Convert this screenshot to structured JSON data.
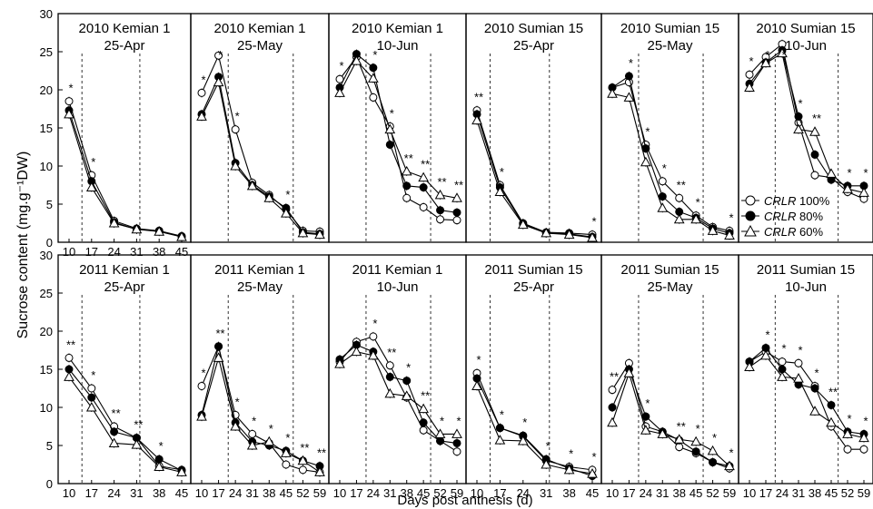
{
  "figure": {
    "ylabel": "Sucrose content (mg.g⁻¹DW)",
    "xlabel": "Days post anthesis (d)",
    "legend": [
      "CRLR 100%",
      "CRLR 80%",
      "CRLR 60%"
    ],
    "legend_prefix": "CRLR",
    "legend_suffixes": [
      "100%",
      "80%",
      "60%"
    ]
  },
  "chart_data": [
    {
      "type": "line",
      "year": "2010",
      "cultivar": "Kemian 1",
      "date": "25-Apr",
      "row": 0,
      "col": 0,
      "x": [
        10,
        17,
        24,
        31,
        38,
        45
      ],
      "xticks": [
        10,
        17,
        24,
        31,
        38,
        45
      ],
      "ylim": [
        0,
        30
      ],
      "yticks": [
        0,
        5,
        10,
        15,
        20,
        25,
        30
      ],
      "vlines": [
        14,
        32
      ],
      "series": [
        {
          "name": "CRLR 100%",
          "values": [
            18.5,
            8.8,
            2.8,
            1.8,
            1.5,
            0.8
          ]
        },
        {
          "name": "CRLR 80%",
          "values": [
            17.3,
            8.0,
            2.6,
            1.7,
            1.5,
            0.7
          ]
        },
        {
          "name": "CRLR 60%",
          "values": [
            16.8,
            7.2,
            2.5,
            1.7,
            1.4,
            0.7
          ]
        }
      ],
      "stars": [
        {
          "x": 10,
          "text": "*"
        },
        {
          "x": 17,
          "text": "*"
        }
      ]
    },
    {
      "type": "line",
      "year": "2010",
      "cultivar": "Kemian 1",
      "date": "25-May",
      "row": 0,
      "col": 1,
      "x": [
        10,
        17,
        24,
        31,
        38,
        45,
        52,
        59
      ],
      "xticks": [],
      "ylim": [
        0,
        30
      ],
      "yticks": [],
      "vlines": [
        21,
        48
      ],
      "series": [
        {
          "name": "CRLR 100%",
          "values": [
            19.6,
            24.5,
            14.8,
            7.8,
            6.2,
            4.3,
            1.5,
            1.4
          ]
        },
        {
          "name": "CRLR 80%",
          "values": [
            16.8,
            21.7,
            10.4,
            7.5,
            6.0,
            4.5,
            1.3,
            1.1
          ]
        },
        {
          "name": "CRLR 60%",
          "values": [
            16.5,
            21.0,
            10.0,
            7.4,
            5.8,
            3.8,
            1.2,
            1.0
          ]
        }
      ],
      "stars": [
        {
          "x": 10,
          "text": "*"
        },
        {
          "x": 17,
          "text": "*"
        },
        {
          "x": 24,
          "text": "*"
        },
        {
          "x": 45,
          "text": "*"
        }
      ]
    },
    {
      "type": "line",
      "year": "2010",
      "cultivar": "Kemian 1",
      "date": "10-Jun",
      "row": 0,
      "col": 2,
      "x": [
        10,
        17,
        24,
        31,
        38,
        45,
        52,
        59
      ],
      "xticks": [],
      "ylim": [
        0,
        30
      ],
      "yticks": [],
      "vlines": [
        21,
        48
      ],
      "series": [
        {
          "name": "CRLR 100%",
          "values": [
            21.4,
            24.3,
            19.0,
            15.2,
            5.8,
            4.6,
            3.0,
            2.9
          ]
        },
        {
          "name": "CRLR 80%",
          "values": [
            20.3,
            24.7,
            22.9,
            12.8,
            7.4,
            7.2,
            4.2,
            3.9
          ]
        },
        {
          "name": "CRLR 60%",
          "values": [
            19.6,
            23.8,
            21.5,
            14.8,
            9.3,
            8.5,
            6.2,
            5.8
          ]
        }
      ],
      "stars": [
        {
          "x": 10,
          "text": "*"
        },
        {
          "x": 17,
          "text": "*"
        },
        {
          "x": 24,
          "text": "*"
        },
        {
          "x": 31,
          "text": "*"
        },
        {
          "x": 38,
          "text": "**"
        },
        {
          "x": 45,
          "text": "**"
        },
        {
          "x": 52,
          "text": "**"
        },
        {
          "x": 59,
          "text": "**"
        }
      ]
    },
    {
      "type": "line",
      "year": "2010",
      "cultivar": "Sumian 15",
      "date": "25-Apr",
      "row": 0,
      "col": 3,
      "x": [
        10,
        17,
        24,
        31,
        38,
        45
      ],
      "xticks": [],
      "ylim": [
        0,
        30
      ],
      "yticks": [],
      "vlines": [
        14,
        32
      ],
      "series": [
        {
          "name": "CRLR 100%",
          "values": [
            17.3,
            7.5,
            2.5,
            1.3,
            1.2,
            1.0
          ]
        },
        {
          "name": "CRLR 80%",
          "values": [
            16.8,
            7.2,
            2.4,
            1.2,
            1.1,
            0.7
          ]
        },
        {
          "name": "CRLR 60%",
          "values": [
            16.0,
            6.6,
            2.3,
            1.2,
            1.0,
            0.6
          ]
        }
      ],
      "stars": [
        {
          "x": 10,
          "text": "**"
        },
        {
          "x": 17,
          "text": "*"
        },
        {
          "x": 45,
          "text": "*"
        }
      ]
    },
    {
      "type": "line",
      "year": "2010",
      "cultivar": "Sumian 15",
      "date": "25-May",
      "row": 0,
      "col": 4,
      "x": [
        10,
        17,
        24,
        31,
        38,
        45,
        52,
        59
      ],
      "xticks": [],
      "ylim": [
        0,
        30
      ],
      "yticks": [],
      "vlines": [
        21,
        48
      ],
      "series": [
        {
          "name": "CRLR 100%",
          "values": [
            20.3,
            21.0,
            12.8,
            8.0,
            5.8,
            3.5,
            2.0,
            1.5
          ]
        },
        {
          "name": "CRLR 80%",
          "values": [
            20.3,
            21.8,
            12.3,
            6.0,
            4.0,
            3.2,
            1.8,
            1.2
          ]
        },
        {
          "name": "CRLR 60%",
          "values": [
            19.5,
            19.0,
            10.5,
            4.5,
            3.0,
            3.0,
            1.5,
            0.9
          ]
        }
      ],
      "stars": [
        {
          "x": 17,
          "text": "*"
        },
        {
          "x": 24,
          "text": "*"
        },
        {
          "x": 31,
          "text": "*"
        },
        {
          "x": 38,
          "text": "**"
        },
        {
          "x": 45,
          "text": "*"
        },
        {
          "x": 59,
          "text": "*"
        }
      ]
    },
    {
      "type": "line",
      "year": "2010",
      "cultivar": "Sumian 15",
      "date": "10-Jun",
      "row": 0,
      "col": 5,
      "x": [
        10,
        17,
        24,
        31,
        38,
        45,
        52,
        59
      ],
      "xticks": [],
      "ylim": [
        0,
        30
      ],
      "yticks": [],
      "vlines": [
        21,
        48
      ],
      "series": [
        {
          "name": "CRLR 100%",
          "values": [
            22.0,
            24.3,
            26.0,
            15.7,
            8.8,
            8.5,
            6.6,
            5.7
          ]
        },
        {
          "name": "CRLR 80%",
          "values": [
            20.8,
            23.6,
            25.2,
            16.5,
            11.5,
            8.2,
            7.4,
            7.4
          ]
        },
        {
          "name": "CRLR 60%",
          "values": [
            20.3,
            23.5,
            24.8,
            14.8,
            14.5,
            9.0,
            7.0,
            6.5
          ]
        }
      ],
      "stars": [
        {
          "x": 10,
          "text": "*"
        },
        {
          "x": 17,
          "text": "*"
        },
        {
          "x": 24,
          "text": "*"
        },
        {
          "x": 31,
          "text": "*"
        },
        {
          "x": 38,
          "text": "**"
        },
        {
          "x": 52,
          "text": "*"
        },
        {
          "x": 59,
          "text": "*"
        }
      ]
    },
    {
      "type": "line",
      "year": "2011",
      "cultivar": "Kemian 1",
      "date": "25-Apr",
      "row": 1,
      "col": 0,
      "x": [
        10,
        17,
        24,
        31,
        38,
        45
      ],
      "xticks": [
        10,
        17,
        24,
        31,
        38,
        45
      ],
      "ylim": [
        0,
        30
      ],
      "yticks": [
        0,
        5,
        10,
        15,
        20,
        25,
        30
      ],
      "vlines": [
        14,
        32
      ],
      "series": [
        {
          "name": "CRLR 100%",
          "values": [
            16.5,
            12.5,
            7.5,
            6.0,
            2.3,
            1.8
          ]
        },
        {
          "name": "CRLR 80%",
          "values": [
            15.0,
            11.3,
            6.8,
            6.0,
            3.2,
            1.7
          ]
        },
        {
          "name": "CRLR 60%",
          "values": [
            14.0,
            10.0,
            5.3,
            5.1,
            2.2,
            1.5
          ]
        }
      ],
      "stars": [
        {
          "x": 10,
          "text": "**"
        },
        {
          "x": 17,
          "text": "*"
        },
        {
          "x": 24,
          "text": "**"
        },
        {
          "x": 31,
          "text": "**"
        },
        {
          "x": 38,
          "text": "*"
        }
      ]
    },
    {
      "type": "line",
      "year": "2011",
      "cultivar": "Kemian 1",
      "date": "25-May",
      "row": 1,
      "col": 1,
      "x": [
        10,
        17,
        24,
        31,
        38,
        45,
        52,
        59
      ],
      "xticks": [
        10,
        17,
        24,
        31,
        38,
        45,
        52,
        59
      ],
      "ylim": [
        0,
        30
      ],
      "yticks": [],
      "vlines": [
        21,
        48
      ],
      "series": [
        {
          "name": "CRLR 100%",
          "values": [
            12.8,
            18.0,
            9.0,
            6.5,
            5.3,
            2.5,
            1.8,
            1.5
          ]
        },
        {
          "name": "CRLR 80%",
          "values": [
            9.0,
            18.0,
            8.0,
            5.5,
            5.0,
            4.3,
            3.0,
            2.3
          ]
        },
        {
          "name": "CRLR 60%",
          "values": [
            8.8,
            16.5,
            7.5,
            5.0,
            5.5,
            4.0,
            3.0,
            1.5
          ]
        }
      ],
      "stars": [
        {
          "x": 10,
          "text": "*"
        },
        {
          "x": 17,
          "text": "**"
        },
        {
          "x": 24,
          "text": "*"
        },
        {
          "x": 31,
          "text": "*"
        },
        {
          "x": 38,
          "text": "*"
        },
        {
          "x": 45,
          "text": "*"
        },
        {
          "x": 52,
          "text": "**"
        },
        {
          "x": 59,
          "text": "**"
        }
      ]
    },
    {
      "type": "line",
      "year": "2011",
      "cultivar": "Kemian 1",
      "date": "10-Jun",
      "row": 1,
      "col": 2,
      "x": [
        10,
        17,
        24,
        31,
        38,
        45,
        52,
        59
      ],
      "xticks": [
        10,
        17,
        24,
        31,
        38,
        45,
        52,
        59
      ],
      "ylim": [
        0,
        30
      ],
      "yticks": [],
      "vlines": [
        21,
        48
      ],
      "series": [
        {
          "name": "CRLR 100%",
          "values": [
            16.0,
            18.6,
            19.3,
            15.5,
            11.3,
            7.0,
            5.6,
            4.2
          ]
        },
        {
          "name": "CRLR 80%",
          "values": [
            16.3,
            18.2,
            17.3,
            14.0,
            13.5,
            8.0,
            5.6,
            5.3
          ]
        },
        {
          "name": "CRLR 60%",
          "values": [
            15.7,
            17.3,
            16.8,
            11.8,
            11.5,
            9.8,
            6.5,
            6.5
          ]
        }
      ],
      "stars": [
        {
          "x": 24,
          "text": "*"
        },
        {
          "x": 31,
          "text": "**"
        },
        {
          "x": 38,
          "text": "*"
        },
        {
          "x": 45,
          "text": "**"
        },
        {
          "x": 52,
          "text": "*"
        },
        {
          "x": 59,
          "text": "*"
        }
      ]
    },
    {
      "type": "line",
      "year": "2011",
      "cultivar": "Sumian 15",
      "date": "25-Apr",
      "row": 1,
      "col": 3,
      "x": [
        10,
        17,
        24,
        31,
        38,
        45
      ],
      "xticks": [
        10,
        17,
        24,
        31,
        38,
        45
      ],
      "ylim": [
        0,
        30
      ],
      "yticks": [],
      "vlines": [
        14,
        32
      ],
      "series": [
        {
          "name": "CRLR 100%",
          "values": [
            14.5,
            7.3,
            6.2,
            3.0,
            2.2,
            1.8
          ]
        },
        {
          "name": "CRLR 80%",
          "values": [
            13.8,
            7.3,
            6.3,
            3.2,
            2.0,
            1.0
          ]
        },
        {
          "name": "CRLR 60%",
          "values": [
            12.8,
            5.7,
            5.6,
            2.5,
            1.8,
            1.3
          ]
        }
      ],
      "stars": [
        {
          "x": 10,
          "text": "*"
        },
        {
          "x": 17,
          "text": "*"
        },
        {
          "x": 24,
          "text": "*"
        },
        {
          "x": 31,
          "text": "*"
        },
        {
          "x": 38,
          "text": "*"
        },
        {
          "x": 45,
          "text": "*"
        }
      ]
    },
    {
      "type": "line",
      "year": "2011",
      "cultivar": "Sumian 15",
      "date": "25-May",
      "row": 1,
      "col": 4,
      "x": [
        10,
        17,
        24,
        31,
        38,
        45,
        52,
        59
      ],
      "xticks": [
        10,
        17,
        24,
        31,
        38,
        45,
        52,
        59
      ],
      "ylim": [
        0,
        30
      ],
      "yticks": [],
      "vlines": [
        21,
        48
      ],
      "series": [
        {
          "name": "CRLR 100%",
          "values": [
            12.3,
            15.8,
            7.5,
            6.8,
            4.8,
            4.0,
            2.8,
            2.0
          ]
        },
        {
          "name": "CRLR 80%",
          "values": [
            10.0,
            15.0,
            8.8,
            6.8,
            5.7,
            4.2,
            2.8,
            2.3
          ]
        },
        {
          "name": "CRLR 60%",
          "values": [
            8.0,
            14.5,
            7.0,
            6.5,
            5.8,
            5.5,
            4.3,
            2.3
          ]
        }
      ],
      "stars": [
        {
          "x": 10,
          "text": "**"
        },
        {
          "x": 24,
          "text": "*"
        },
        {
          "x": 38,
          "text": "**"
        },
        {
          "x": 45,
          "text": "*"
        },
        {
          "x": 52,
          "text": "*"
        },
        {
          "x": 59,
          "text": "*"
        }
      ]
    },
    {
      "type": "line",
      "year": "2011",
      "cultivar": "Sumian 15",
      "date": "10-Jun",
      "row": 1,
      "col": 5,
      "x": [
        10,
        17,
        24,
        31,
        38,
        45,
        52,
        59
      ],
      "xticks": [
        10,
        17,
        24,
        31,
        38,
        45,
        52,
        59
      ],
      "ylim": [
        0,
        30
      ],
      "yticks": [],
      "vlines": [
        21,
        48
      ],
      "series": [
        {
          "name": "CRLR 100%",
          "values": [
            16.0,
            17.3,
            16.0,
            15.8,
            12.8,
            7.5,
            4.5,
            4.5
          ]
        },
        {
          "name": "CRLR 80%",
          "values": [
            16.0,
            17.8,
            15.0,
            13.0,
            12.5,
            10.3,
            6.8,
            6.5
          ]
        },
        {
          "name": "CRLR 60%",
          "values": [
            15.3,
            16.8,
            14.0,
            13.8,
            9.5,
            8.0,
            6.5,
            6.0
          ]
        }
      ],
      "stars": [
        {
          "x": 17,
          "text": "*"
        },
        {
          "x": 24,
          "text": "*"
        },
        {
          "x": 31,
          "text": "*"
        },
        {
          "x": 38,
          "text": "*"
        },
        {
          "x": 45,
          "text": "**"
        },
        {
          "x": 52,
          "text": "*"
        },
        {
          "x": 59,
          "text": "*"
        }
      ]
    }
  ]
}
